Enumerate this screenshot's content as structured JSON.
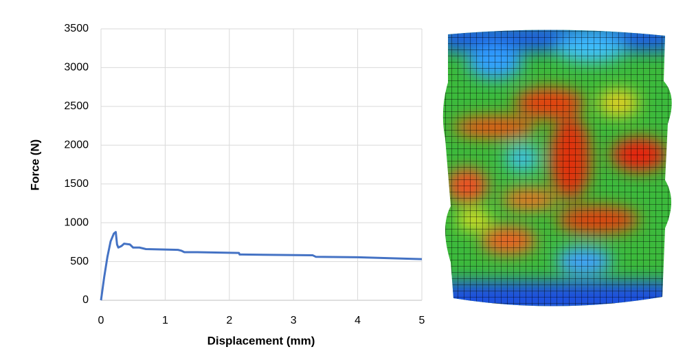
{
  "chart_data": {
    "type": "line",
    "xlabel": "Displacement (mm)",
    "ylabel": "Force (N)",
    "x": [
      0,
      0.05,
      0.1,
      0.15,
      0.2,
      0.23,
      0.25,
      0.27,
      0.32,
      0.36,
      0.45,
      0.5,
      0.6,
      0.65,
      0.7,
      1.2,
      1.25,
      1.3,
      1.5,
      2.15,
      2.16,
      2.2,
      3.3,
      3.35,
      4,
      5
    ],
    "values": [
      0,
      300,
      560,
      760,
      860,
      880,
      720,
      680,
      700,
      730,
      720,
      680,
      680,
      670,
      660,
      650,
      640,
      620,
      620,
      610,
      590,
      590,
      580,
      560,
      555,
      530
    ],
    "color": "#4472c4",
    "xlim": [
      0,
      5
    ],
    "xticks": [
      0,
      1,
      2,
      3,
      4,
      5
    ],
    "ylim": [
      0,
      3500
    ],
    "yticks": [
      0,
      500,
      1000,
      1500,
      2000,
      2500,
      3000,
      3500
    ],
    "grid": true
  }
}
